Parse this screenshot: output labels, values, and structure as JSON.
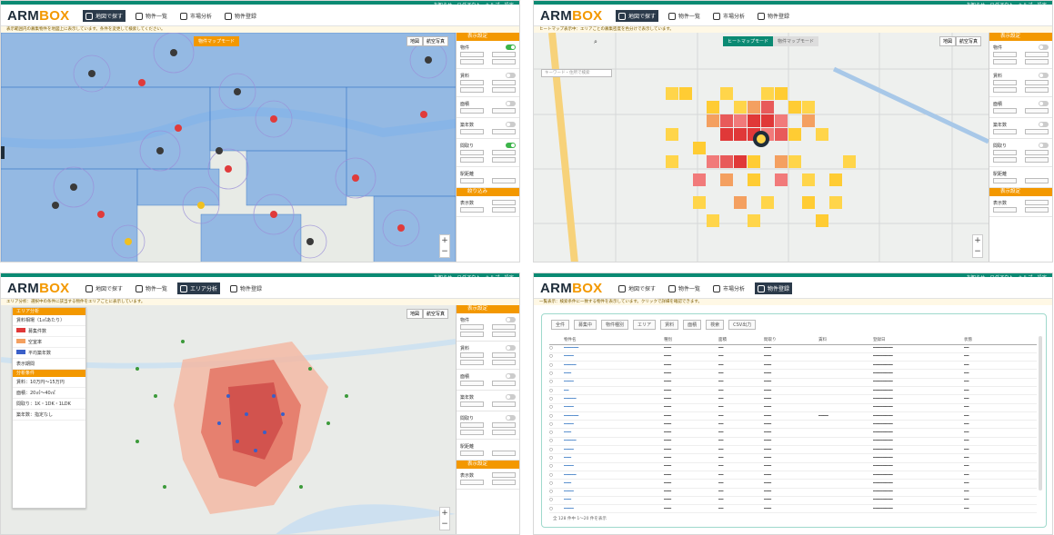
{
  "brand": {
    "logo_main": "ARM",
    "logo_accent": "BOX"
  },
  "top_links": "お知らせ　ログアウト　ヘルプ　設定",
  "panels": [
    {
      "nav": [
        "地図で探す",
        "物件一覧",
        "市場分析",
        "物件登録"
      ],
      "active_nav": 0,
      "notice": "表示範囲内の募集物件を地図上に表示しています。条件を変更して検索してください。",
      "mode_label": "物件マップモード",
      "map_type": [
        "地図",
        "航空写真"
      ],
      "sidebar_title": "表示設定",
      "sidebar_sections": [
        "物件",
        "賃料",
        "面積",
        "築年数",
        "間取り",
        "駅距離",
        "表示数"
      ],
      "footer_title": "絞り込み"
    },
    {
      "nav": [
        "地図で探す",
        "物件一覧",
        "市場分析",
        "物件登録"
      ],
      "active_nav": 0,
      "notice": "ヒートマップ表示中：エリアごとの募集密度を色分けで表示しています。",
      "search_placeholder": "キーワード・住所で検索",
      "mode_active": "ヒートマップモード",
      "mode_inactive": "物件マップモード",
      "map_type": [
        "地図",
        "航空写真"
      ],
      "sidebar_title": "表示設定",
      "sidebar_sections": [
        "物件",
        "賃料",
        "面積",
        "築年数",
        "間取り",
        "駅距離",
        "表示数"
      ]
    },
    {
      "nav": [
        "地図で探す",
        "物件一覧",
        "エリア分析",
        "物件登録"
      ],
      "active_nav": 2,
      "notice": "エリア分析：選択中の条件に該当する物件をエリアごとに表示しています。",
      "legend_title": "エリア分析",
      "legend_items": [
        "賃料相場（1㎡あたり）",
        "募集件数",
        "空室率",
        "平均築年数",
        "表示期間"
      ],
      "legend_sub": "分析条件",
      "legend_rows": [
        "賃料：10万円〜15万円",
        "面積：20㎡〜40㎡",
        "間取り：1K・1DK・1LDK",
        "築年数：指定なし"
      ],
      "map_type": [
        "地図",
        "航空写真"
      ],
      "sidebar_title": "表示設定",
      "sidebar_sections": [
        "物件",
        "賃料",
        "面積",
        "築年数",
        "間取り",
        "駅距離",
        "表示数"
      ]
    },
    {
      "nav": [
        "地図で探す",
        "物件一覧",
        "市場分析",
        "物件登録"
      ],
      "active_nav": 1,
      "notice": "一覧表示：検索条件に一致する物件を表示しています。クリックで詳細を確認できます。",
      "toolbar": [
        "全件",
        "募集中",
        "物件種別",
        "エリア",
        "賃料",
        "面積",
        "検索",
        "CSV出力"
      ],
      "columns": [
        "",
        "物件名",
        "種別",
        "面積",
        "間取り",
        "賃料",
        "登録日",
        "状態"
      ],
      "footer": "全 128 件中 1〜20 件を表示"
    }
  ]
}
